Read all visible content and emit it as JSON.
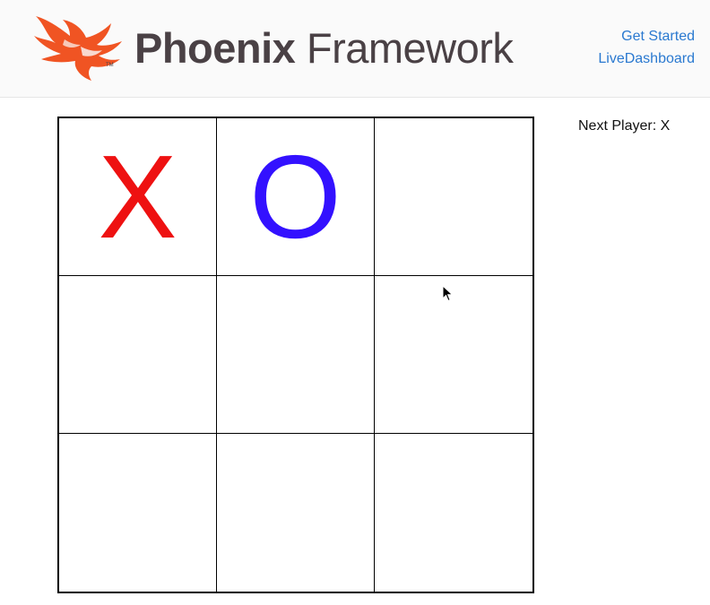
{
  "header": {
    "logo_bold": "Phoenix",
    "logo_light": "Framework",
    "logo_icon": "phoenix-bird-icon",
    "brand_color": "#f05423",
    "nav": [
      {
        "label": "Get Started"
      },
      {
        "label": "LiveDashboard"
      }
    ],
    "link_color": "#2a79d0"
  },
  "board": {
    "cells": [
      [
        "X",
        "O",
        ""
      ],
      [
        "",
        "",
        ""
      ],
      [
        "",
        "",
        ""
      ]
    ],
    "x_color": "#ee1111",
    "o_color": "#3311ff"
  },
  "status": {
    "text": "Next Player: X"
  }
}
